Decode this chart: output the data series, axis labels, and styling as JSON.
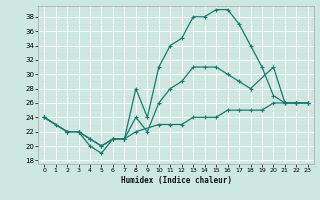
{
  "xlabel": "Humidex (Indice chaleur)",
  "bg_color": "#cce8e0",
  "grid_color": "#ffffff",
  "grid_minor_color": "#e8d8d8",
  "line_color": "#1a7a6e",
  "xlim": [
    -0.5,
    23.5
  ],
  "ylim": [
    17.5,
    39.5
  ],
  "xticks": [
    0,
    1,
    2,
    3,
    4,
    5,
    6,
    7,
    8,
    9,
    10,
    11,
    12,
    13,
    14,
    15,
    16,
    17,
    18,
    19,
    20,
    21,
    22,
    23
  ],
  "yticks": [
    18,
    20,
    22,
    24,
    26,
    28,
    30,
    32,
    34,
    36,
    38
  ],
  "line1_x": [
    0,
    1,
    2,
    3,
    4,
    5,
    6,
    7,
    8,
    9,
    10,
    11,
    12,
    13,
    14,
    15,
    16,
    17,
    18,
    19,
    20,
    21,
    22,
    23
  ],
  "line1_y": [
    24,
    23,
    22,
    22,
    20,
    19,
    21,
    21,
    28,
    24,
    31,
    34,
    35,
    38,
    38,
    39,
    39,
    37,
    34,
    31,
    27,
    26,
    26,
    26
  ],
  "line2_x": [
    0,
    2,
    3,
    4,
    5,
    6,
    7,
    8,
    9,
    10,
    11,
    12,
    13,
    14,
    15,
    16,
    17,
    18,
    20,
    21,
    22,
    23
  ],
  "line2_y": [
    24,
    22,
    22,
    21,
    20,
    21,
    21,
    24,
    22,
    26,
    28,
    29,
    31,
    31,
    31,
    30,
    29,
    28,
    31,
    26,
    26,
    26
  ],
  "line3_x": [
    0,
    2,
    3,
    4,
    5,
    6,
    7,
    8,
    10,
    11,
    12,
    13,
    14,
    15,
    16,
    17,
    18,
    19,
    20,
    21,
    22,
    23
  ],
  "line3_y": [
    24,
    22,
    22,
    21,
    20,
    21,
    21,
    22,
    23,
    23,
    23,
    24,
    24,
    24,
    25,
    25,
    25,
    25,
    26,
    26,
    26,
    26
  ]
}
